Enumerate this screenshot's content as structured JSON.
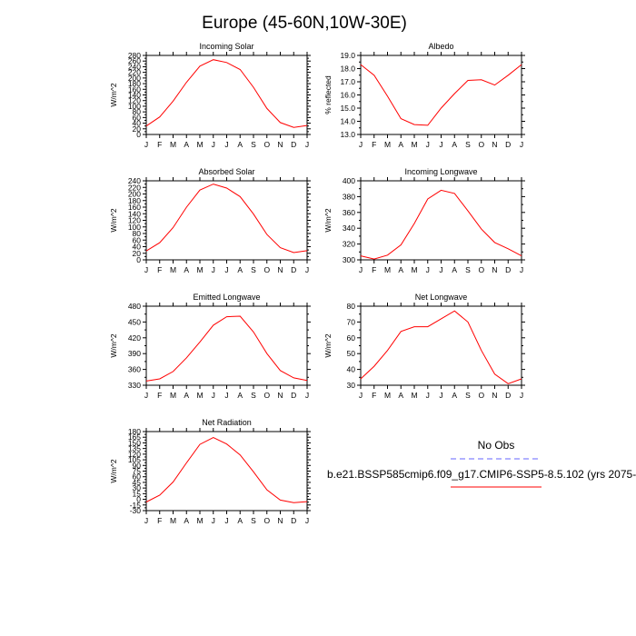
{
  "title": "Europe (45-60N,10W-30E)",
  "legend": {
    "obs_label": "No Obs",
    "obs_color": "#6666ff",
    "case_label": "b.e21.BSSP585cmip6.f09_g17.CMIP6-SSP5-8.5.102 (yrs 2075-",
    "case_color": "#ff0000"
  },
  "chart_data": [
    {
      "type": "line",
      "title": "Incoming Solar",
      "ylabel": "W/m^2",
      "x": [
        "J",
        "F",
        "M",
        "A",
        "M",
        "J",
        "J",
        "A",
        "S",
        "O",
        "N",
        "D",
        "J"
      ],
      "ylim": [
        0,
        280
      ],
      "yticks": [
        "0",
        "20",
        "40",
        "60",
        "80",
        "100",
        "120",
        "140",
        "160",
        "180",
        "200",
        "220",
        "240",
        "260",
        "280"
      ],
      "series": [
        {
          "values": [
            30,
            62,
            118,
            185,
            242,
            265,
            255,
            230,
            167,
            92,
            42,
            25,
            32
          ]
        }
      ]
    },
    {
      "type": "line",
      "title": "Albedo",
      "ylabel": "% reflected",
      "x": [
        "J",
        "F",
        "M",
        "A",
        "M",
        "J",
        "J",
        "A",
        "S",
        "O",
        "N",
        "D",
        "J"
      ],
      "ylim": [
        13.0,
        19.0
      ],
      "yticks": [
        "13.0",
        "14.0",
        "15.0",
        "16.0",
        "17.0",
        "18.0",
        "19.0"
      ],
      "series": [
        {
          "values": [
            18.3,
            17.5,
            15.9,
            14.2,
            13.75,
            13.7,
            15.0,
            16.1,
            17.1,
            17.15,
            16.75,
            17.5,
            18.3
          ]
        }
      ]
    },
    {
      "type": "line",
      "title": "Absorbed Solar",
      "ylabel": "W/m^2",
      "x": [
        "J",
        "F",
        "M",
        "A",
        "M",
        "J",
        "J",
        "A",
        "S",
        "O",
        "N",
        "D",
        "J"
      ],
      "ylim": [
        0,
        240
      ],
      "yticks": [
        "0",
        "20",
        "40",
        "60",
        "80",
        "100",
        "120",
        "140",
        "160",
        "180",
        "200",
        "220",
        "240"
      ],
      "series": [
        {
          "values": [
            27,
            52,
            98,
            160,
            212,
            230,
            218,
            192,
            139,
            77,
            37,
            22,
            28
          ]
        }
      ]
    },
    {
      "type": "line",
      "title": "Incoming Longwave",
      "ylabel": "W/m^2",
      "x": [
        "J",
        "F",
        "M",
        "A",
        "M",
        "J",
        "J",
        "A",
        "S",
        "O",
        "N",
        "D",
        "J"
      ],
      "ylim": [
        300,
        400
      ],
      "yticks": [
        "300",
        "320",
        "340",
        "360",
        "380",
        "400"
      ],
      "series": [
        {
          "values": [
            305,
            301,
            306,
            319,
            346,
            377,
            388,
            384,
            362,
            339,
            322,
            314,
            305
          ]
        }
      ]
    },
    {
      "type": "line",
      "title": "Emitted Longwave",
      "ylabel": "W/m^2",
      "x": [
        "J",
        "F",
        "M",
        "A",
        "M",
        "J",
        "J",
        "A",
        "S",
        "O",
        "N",
        "D",
        "J"
      ],
      "ylim": [
        330,
        480
      ],
      "yticks": [
        "330",
        "360",
        "390",
        "420",
        "450",
        "480"
      ],
      "series": [
        {
          "values": [
            338,
            342,
            356,
            382,
            412,
            444,
            460,
            461,
            431,
            390,
            358,
            344,
            339
          ]
        }
      ]
    },
    {
      "type": "line",
      "title": "Net Longwave",
      "ylabel": "W/m^2",
      "x": [
        "J",
        "F",
        "M",
        "A",
        "M",
        "J",
        "J",
        "A",
        "S",
        "O",
        "N",
        "D",
        "J"
      ],
      "ylim": [
        30,
        80
      ],
      "yticks": [
        "30",
        "40",
        "50",
        "60",
        "70",
        "80"
      ],
      "series": [
        {
          "values": [
            34,
            42,
            52,
            64,
            67,
            67,
            72,
            77,
            70,
            52,
            37,
            31,
            34
          ]
        }
      ]
    },
    {
      "type": "line",
      "title": "Net Radiation",
      "ylabel": "W/m^2",
      "x": [
        "J",
        "F",
        "M",
        "A",
        "M",
        "J",
        "J",
        "A",
        "S",
        "O",
        "N",
        "D",
        "J"
      ],
      "ylim": [
        -30,
        180
      ],
      "yticks": [
        "-30",
        "-15",
        "0",
        "15",
        "30",
        "45",
        "60",
        "75",
        "90",
        "105",
        "120",
        "135",
        "150",
        "165",
        "180"
      ],
      "series": [
        {
          "values": [
            -7,
            11,
            46,
            97,
            146,
            164,
            147,
            118,
            73,
            25,
            -2,
            -9,
            -6
          ]
        }
      ]
    }
  ]
}
